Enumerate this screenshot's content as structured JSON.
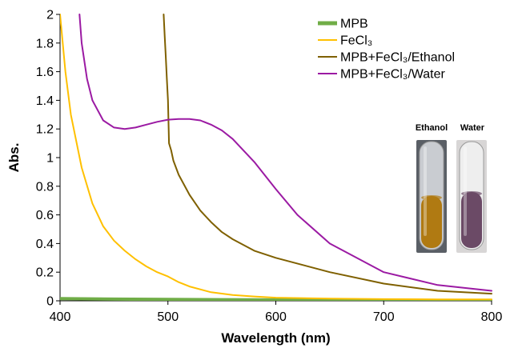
{
  "chart_data": {
    "type": "line",
    "xlabel": "Wavelength (nm)",
    "ylabel": "Abs.",
    "xlim": [
      400,
      800
    ],
    "ylim": [
      0,
      2
    ],
    "xticks": [
      400,
      500,
      600,
      700,
      800
    ],
    "xtick_labels": [
      "400",
      "500",
      "600",
      "700",
      "800"
    ],
    "yticks": [
      0,
      0.2,
      0.4,
      0.6,
      0.8,
      1,
      1.2,
      1.4,
      1.6,
      1.8,
      2
    ],
    "ytick_labels": [
      "0",
      "0.2",
      "0.4",
      "0.6",
      "0.8",
      "1",
      "1.2",
      "1.4",
      "1.6",
      "1.8",
      "2"
    ],
    "grid": false,
    "legend_position": "top-right",
    "series": [
      {
        "name": "MPB",
        "color": "#70ad47",
        "x": [
          400,
          450,
          500,
          550,
          600,
          650,
          700,
          750,
          800
        ],
        "y": [
          0.015,
          0.012,
          0.01,
          0.008,
          0.006,
          0.005,
          0.004,
          0.003,
          0.002
        ]
      },
      {
        "name": "FeCl₃",
        "color": "#ffc000",
        "x": [
          400,
          405,
          410,
          420,
          430,
          440,
          450,
          460,
          470,
          480,
          490,
          500,
          510,
          520,
          540,
          560,
          580,
          600,
          650,
          700,
          750,
          800
        ],
        "y": [
          2.0,
          1.6,
          1.3,
          0.93,
          0.68,
          0.52,
          0.42,
          0.35,
          0.29,
          0.24,
          0.2,
          0.17,
          0.13,
          0.1,
          0.06,
          0.04,
          0.03,
          0.022,
          0.015,
          0.012,
          0.01,
          0.01
        ]
      },
      {
        "name": "MPB+FeCl₃/Ethanol",
        "color": "#7f6000",
        "x": [
          496,
          497,
          498,
          499,
          500,
          501,
          503,
          505,
          510,
          520,
          530,
          540,
          550,
          560,
          580,
          600,
          650,
          700,
          750,
          800
        ],
        "y": [
          2.0,
          1.85,
          1.7,
          1.55,
          1.4,
          1.1,
          1.05,
          0.98,
          0.88,
          0.74,
          0.63,
          0.55,
          0.48,
          0.43,
          0.35,
          0.3,
          0.2,
          0.12,
          0.07,
          0.05
        ]
      },
      {
        "name": "MPB+FeCl₃/Water",
        "color": "#9b1aa3",
        "x": [
          418,
          420,
          425,
          430,
          440,
          450,
          460,
          470,
          480,
          490,
          500,
          510,
          520,
          530,
          540,
          550,
          560,
          580,
          600,
          620,
          650,
          700,
          750,
          800
        ],
        "y": [
          2.0,
          1.8,
          1.55,
          1.4,
          1.26,
          1.21,
          1.2,
          1.21,
          1.23,
          1.25,
          1.265,
          1.27,
          1.27,
          1.26,
          1.23,
          1.19,
          1.13,
          0.97,
          0.78,
          0.6,
          0.4,
          0.2,
          0.11,
          0.07
        ]
      }
    ],
    "inset": {
      "labels": [
        "Ethanol",
        "Water"
      ],
      "liquid_colors": [
        "#b07a12",
        "#6b4a66"
      ]
    }
  }
}
